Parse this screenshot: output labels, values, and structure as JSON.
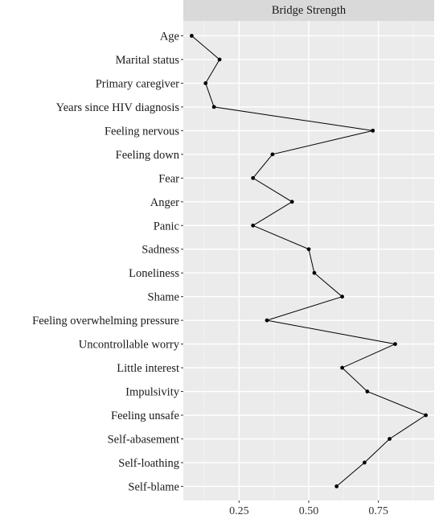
{
  "chart_data": {
    "type": "line",
    "title": "Bridge Strength",
    "xlabel": "",
    "ylabel": "",
    "xlim": [
      0.05,
      0.95
    ],
    "x_ticks": [
      0.25,
      0.5,
      0.75
    ],
    "x_tick_labels": [
      "0.25",
      "0.50",
      "0.75"
    ],
    "x_minor": [
      0.125,
      0.375,
      0.625,
      0.875
    ],
    "grid": true,
    "categories": [
      "Age",
      "Marital status",
      "Primary caregiver",
      "Years since HIV diagnosis",
      "Feeling nervous",
      "Feeling down",
      "Fear",
      "Anger",
      "Panic",
      "Sadness",
      "Loneliness",
      "Shame",
      "Feeling overwhelming pressure",
      "Uncontrollable worry",
      "Little interest",
      "Impulsivity",
      "Feeling unsafe",
      "Self-abasement",
      "Self-loathing",
      "Self-blame"
    ],
    "values": [
      0.08,
      0.18,
      0.13,
      0.16,
      0.73,
      0.37,
      0.3,
      0.44,
      0.3,
      0.5,
      0.52,
      0.62,
      0.35,
      0.81,
      0.62,
      0.71,
      0.92,
      0.79,
      0.7,
      0.6
    ],
    "colors": {
      "panel_bg": "#ebebeb",
      "grid_major": "#ffffff",
      "grid_minor": "#f5f5f5",
      "strip_bg": "#d9d9d9",
      "line": "#000000",
      "text": "#1a1a1a",
      "tick": "#333333"
    }
  }
}
